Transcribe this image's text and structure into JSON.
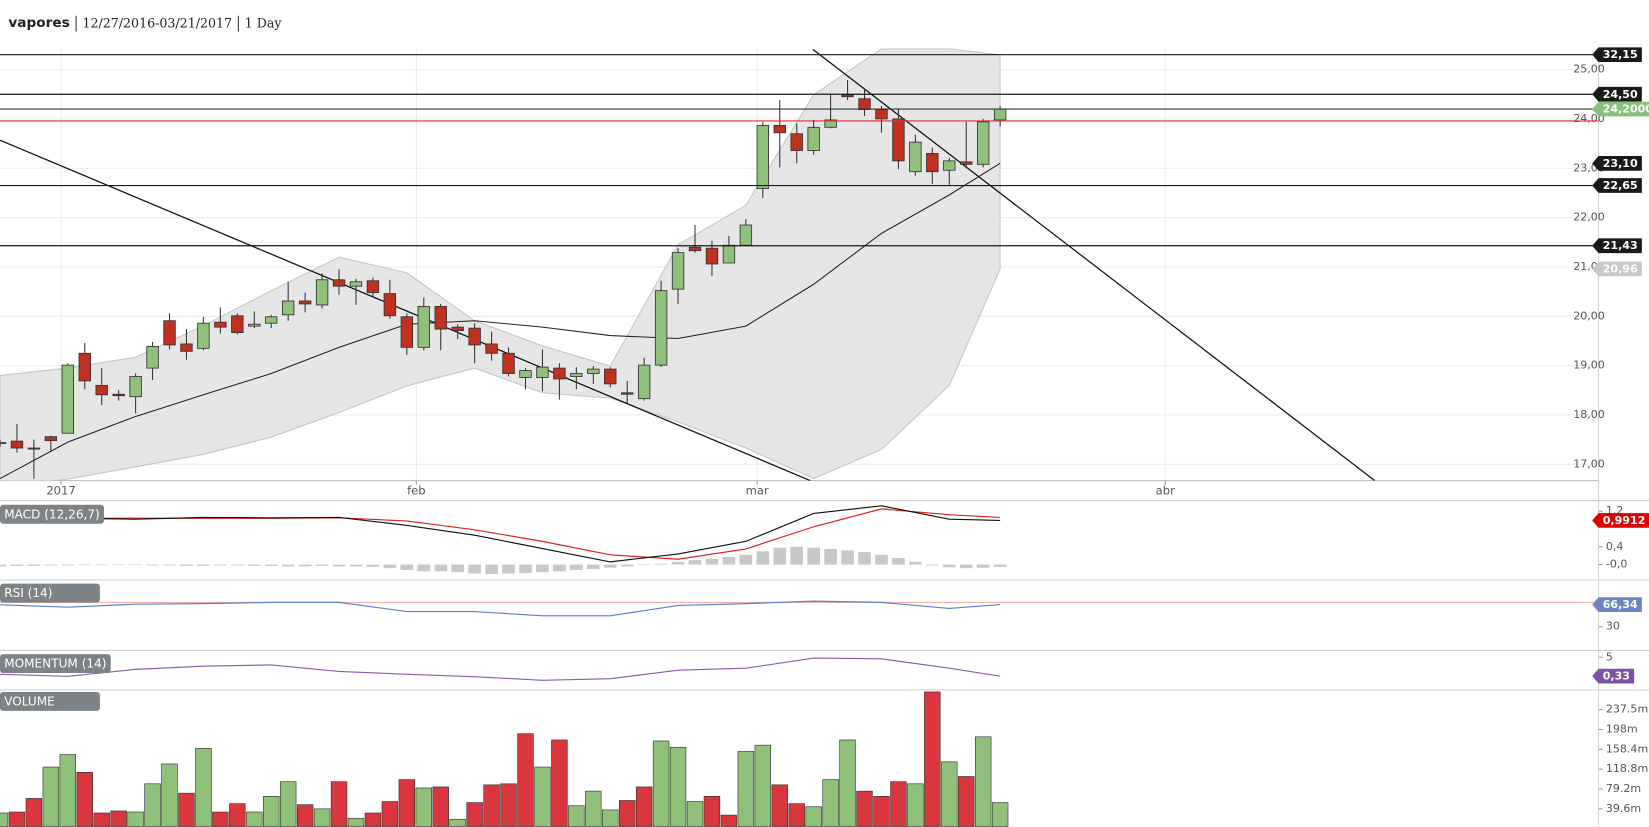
{
  "header": {
    "symbol": "vapores",
    "range": "12/27/2016-03/21/2017",
    "interval": "1 Day"
  },
  "chart_data": [
    {
      "type": "candlestick",
      "open": [
        17.42,
        17.47,
        17.33,
        17.56,
        17.63,
        19.25,
        18.6,
        18.42,
        18.37,
        18.95,
        19.91,
        19.44,
        19.35,
        19.88,
        20.01,
        19.8,
        19.86,
        20.03,
        20.31,
        20.23,
        20.74,
        20.61,
        20.72,
        20.46,
        19.99,
        19.37,
        20.2,
        19.78,
        19.76,
        19.44,
        19.25,
        18.76,
        18.76,
        18.95,
        18.78,
        18.84,
        18.93,
        18.45,
        18.33,
        19.01,
        20.55,
        21.4,
        21.38,
        21.08,
        21.44,
        22.59,
        23.87,
        23.7,
        23.36,
        23.83,
        24.49,
        24.41,
        24.19,
        24.0,
        22.93,
        23.3,
        22.96,
        23.13,
        23.08,
        23.98
      ],
      "high": [
        17.5,
        17.82,
        17.5,
        17.58,
        19.05,
        19.46,
        18.95,
        18.5,
        18.84,
        19.48,
        20.06,
        19.74,
        19.99,
        20.18,
        20.06,
        20.1,
        20.03,
        20.7,
        20.48,
        20.87,
        20.95,
        20.76,
        20.78,
        20.74,
        20.06,
        20.38,
        20.25,
        19.84,
        19.86,
        19.69,
        19.37,
        18.95,
        19.33,
        19.05,
        18.97,
        18.99,
        18.97,
        18.69,
        19.16,
        20.72,
        21.38,
        21.85,
        21.53,
        21.63,
        21.97,
        23.94,
        24.38,
        23.91,
        23.98,
        24.51,
        24.79,
        24.62,
        24.26,
        24.19,
        23.68,
        23.42,
        23.21,
        23.94,
        24.0,
        24.26
      ],
      "low": [
        17.35,
        17.24,
        16.71,
        17.28,
        17.62,
        18.52,
        18.2,
        18.29,
        18.03,
        18.71,
        19.33,
        19.12,
        19.31,
        19.65,
        19.63,
        19.76,
        19.76,
        19.91,
        20.08,
        20.16,
        20.44,
        20.23,
        20.4,
        19.95,
        19.22,
        19.31,
        19.31,
        19.54,
        19.05,
        19.1,
        18.78,
        18.52,
        18.48,
        18.31,
        18.52,
        18.63,
        18.56,
        18.24,
        18.29,
        18.97,
        20.25,
        21.29,
        20.82,
        21.08,
        21.42,
        22.4,
        23.02,
        23.1,
        23.28,
        23.81,
        24.38,
        24.06,
        23.72,
        22.98,
        22.85,
        22.68,
        22.66,
        23.0,
        23.02,
        23.85
      ],
      "close": [
        17.44,
        17.33,
        17.31,
        17.48,
        19.01,
        18.69,
        18.41,
        18.39,
        18.78,
        19.39,
        19.42,
        19.29,
        19.86,
        19.78,
        19.67,
        19.84,
        19.99,
        20.31,
        20.25,
        20.74,
        20.61,
        20.7,
        20.48,
        20.01,
        19.37,
        20.2,
        19.74,
        19.71,
        19.42,
        19.25,
        18.84,
        18.9,
        18.97,
        18.73,
        18.84,
        18.93,
        18.63,
        18.42,
        19.01,
        20.52,
        21.29,
        21.33,
        21.06,
        21.44,
        21.85,
        23.87,
        23.72,
        23.36,
        23.83,
        23.98,
        24.45,
        24.19,
        24.0,
        23.15,
        23.53,
        22.93,
        23.15,
        23.08,
        23.94,
        24.2
      ],
      "up_color": "#8fc17b",
      "down_color": "#c0301e",
      "xlim": [
        0,
        94.3
      ],
      "xticks": [
        {
          "value": 3.6,
          "label": "2017"
        },
        {
          "value": 24.56,
          "label": "feb"
        },
        {
          "value": 44.67,
          "label": "mar"
        },
        {
          "value": 68.74,
          "label": "abr"
        }
      ],
      "ylim": [
        16.67,
        25.43
      ],
      "yticks": [
        {
          "value": 17,
          "label": "17,00"
        },
        {
          "value": 18,
          "label": "18,00"
        },
        {
          "value": 19,
          "label": "19,00"
        },
        {
          "value": 20,
          "label": "20,00"
        },
        {
          "value": 21,
          "label": "21,00"
        },
        {
          "value": 22,
          "label": "22,00"
        },
        {
          "value": 23,
          "label": "23,00"
        },
        {
          "value": 24,
          "label": "24,00"
        },
        {
          "value": 25,
          "label": "25,00"
        }
      ],
      "grid": true,
      "band": {
        "x": [
          0,
          4,
          8,
          12,
          16,
          20,
          24,
          28,
          32,
          36,
          40,
          44,
          48,
          52,
          56,
          59
        ],
        "upper": [
          18.8,
          18.95,
          19.17,
          19.81,
          20.52,
          21.2,
          20.88,
          19.91,
          19.4,
          18.99,
          21.45,
          22.25,
          24.49,
          25.42,
          25.42,
          25.3
        ],
        "lower": [
          16.55,
          16.7,
          16.95,
          17.2,
          17.55,
          18.05,
          18.59,
          18.95,
          18.45,
          18.34,
          17.86,
          17.33,
          16.71,
          17.3,
          18.6,
          20.96
        ],
        "color": "#e2e2e2"
      },
      "lines": [
        {
          "x": [
            0,
            4,
            8,
            12,
            16,
            20,
            24,
            28,
            32,
            36,
            40,
            44,
            48,
            52,
            56,
            59
          ],
          "values": [
            16.71,
            17.45,
            17.97,
            18.41,
            18.84,
            19.37,
            19.84,
            19.91,
            19.78,
            19.61,
            19.55,
            19.8,
            20.65,
            21.68,
            22.46,
            23.1
          ],
          "color": "#222"
        }
      ],
      "trendlines": [
        {
          "x": [
            0,
            47.8
          ],
          "values": [
            23.57,
            16.67
          ],
          "color": "#111"
        },
        {
          "x": [
            47.95,
            81.1
          ],
          "values": [
            25.41,
            16.67
          ],
          "color": "#111"
        }
      ],
      "levels": [
        {
          "value": 32.15,
          "label": "32,15",
          "color": "#1a1a1a",
          "line": true
        },
        {
          "value": 24.5,
          "label": "24,50",
          "color": "#1a1a1a",
          "line": true
        },
        {
          "value": 24.2,
          "label": "24,2000",
          "color": "#86c07a",
          "line": true,
          "line_color": "#333"
        },
        {
          "value": 23.96,
          "color": "#e03030",
          "line": true
        },
        {
          "value": 23.1,
          "label": "23,10",
          "color": "#1a1a1a",
          "line": false
        },
        {
          "value": 22.65,
          "label": "22,65",
          "color": "#1a1a1a",
          "line": true
        },
        {
          "value": 21.43,
          "label": "21,43",
          "color": "#1a1a1a",
          "line": true
        },
        {
          "value": 20.96,
          "label": "20,96",
          "color": "#c8c8c8",
          "line": false
        }
      ]
    },
    {
      "type": "line",
      "title": "MACD (12,26,7)",
      "ylim": [
        -0.31,
        1.39
      ],
      "yticks": [
        {
          "value": 0,
          "label": "-0,0"
        },
        {
          "value": 0.4,
          "label": "0,4"
        },
        {
          "value": 1.2,
          "label": "1,2"
        }
      ],
      "histogram": [
        -0.04,
        -0.03,
        -0.03,
        -0.02,
        -0.02,
        -0.01,
        -0.01,
        0,
        -0.01,
        -0.02,
        -0.02,
        -0.03,
        -0.03,
        -0.02,
        -0.02,
        -0.03,
        -0.03,
        -0.04,
        -0.04,
        -0.03,
        -0.04,
        -0.04,
        -0.05,
        -0.08,
        -0.12,
        -0.15,
        -0.15,
        -0.17,
        -0.2,
        -0.21,
        -0.2,
        -0.19,
        -0.17,
        -0.15,
        -0.12,
        -0.1,
        -0.07,
        -0.04,
        -0.01,
        0.02,
        0.06,
        0.1,
        0.13,
        0.17,
        0.22,
        0.3,
        0.38,
        0.4,
        0.38,
        0.35,
        0.32,
        0.28,
        0.22,
        0.15,
        0.06,
        -0.02,
        -0.06,
        -0.08,
        -0.07,
        -0.05
      ],
      "histogram_color": "#c8c8c8",
      "series": [
        {
          "x": [
            0,
            4,
            8,
            12,
            16,
            20,
            24,
            28,
            32,
            36,
            40,
            44,
            48,
            52,
            56,
            59
          ],
          "values": [
            1.05,
            1.04,
            1.04,
            1.04,
            1.04,
            1.05,
            0.98,
            0.78,
            0.52,
            0.22,
            0.12,
            0.35,
            0.85,
            1.25,
            1.12,
            1.06
          ],
          "color": "#e02020"
        },
        {
          "x": [
            0,
            4,
            8,
            12,
            16,
            20,
            24,
            28,
            32,
            36,
            40,
            44,
            48,
            52,
            56,
            59
          ],
          "values": [
            1.06,
            1.04,
            1.02,
            1.06,
            1.05,
            1.06,
            0.88,
            0.66,
            0.36,
            0.06,
            0.24,
            0.52,
            1.15,
            1.32,
            1.02,
            0.99
          ],
          "color": "#111"
        }
      ],
      "levels": [
        {
          "value": 0.9912,
          "label": "0,9912",
          "color": "#e00000"
        }
      ]
    },
    {
      "type": "line",
      "title": "RSI (14)",
      "ylim": [
        -6.3,
        104.2
      ],
      "yticks": [
        30
      ],
      "reference_lines": [
        {
          "value": 70,
          "color": "#f0a8a8"
        }
      ],
      "series": [
        {
          "x": [
            0,
            4,
            8,
            12,
            16,
            20,
            24,
            28,
            32,
            36,
            40,
            44,
            48,
            52,
            56,
            59
          ],
          "values": [
            66,
            62,
            67,
            68,
            70,
            70,
            55,
            55,
            48,
            48,
            65,
            68,
            72,
            70,
            60,
            66.34
          ],
          "color": "#5b7fc4"
        }
      ],
      "levels": [
        {
          "value": 66.34,
          "label": "66,34",
          "color": "#6a86c4"
        }
      ]
    },
    {
      "type": "line",
      "title": "MOMENTUM (14)",
      "ylim": [
        -2.8,
        6.3
      ],
      "yticks": [
        5
      ],
      "series": [
        {
          "x": [
            0,
            4,
            8,
            12,
            16,
            20,
            24,
            28,
            32,
            36,
            40,
            44,
            48,
            52,
            56,
            59
          ],
          "values": [
            0.8,
            0.3,
            2.0,
            2.8,
            3.1,
            1.5,
            0.8,
            0.2,
            -0.7,
            -0.3,
            1.8,
            2.3,
            4.8,
            4.6,
            2.3,
            0.33
          ],
          "color": "#8a5cb0"
        }
      ],
      "levels": [
        {
          "value": 0.33,
          "label": "0,33",
          "color": "#7b52a8"
        }
      ]
    },
    {
      "type": "bar",
      "title": "VOLUME",
      "ylim": [
        4.2,
        277.1
      ],
      "yticks": [
        {
          "value": 39.6,
          "label": "39.6m"
        },
        {
          "value": 79.2,
          "label": "79.2m"
        },
        {
          "value": 118.8,
          "label": "118.8m"
        },
        {
          "value": 158.4,
          "label": "158.4m"
        },
        {
          "value": 198,
          "label": "198m"
        },
        {
          "value": 237.5,
          "label": "237.5m"
        }
      ],
      "values": [
        31.3,
        33.3,
        60.4,
        123.0,
        148.0,
        112.5,
        31.3,
        35.4,
        33.3,
        89.6,
        129.2,
        70.9,
        160.5,
        33.3,
        50.0,
        33.3,
        64.6,
        93.8,
        47.9,
        39.6,
        93.8,
        20.8,
        31.3,
        54.2,
        98.0,
        81.3,
        83.4,
        18.8,
        52.1,
        87.5,
        89.6,
        189.6,
        123.0,
        177.1,
        45.8,
        75.0,
        37.5,
        56.3,
        83.4,
        175.1,
        162.5,
        54.2,
        64.6,
        27.1,
        154.2,
        166.7,
        87.5,
        50.0,
        43.8,
        98.0,
        177.1,
        75.0,
        64.6,
        93.8,
        89.6,
        273.0,
        133.4,
        104.2,
        183.4,
        52.1
      ],
      "colors": [
        "#8fc17b",
        "#d9363e",
        "#d9363e",
        "#8fc17b",
        "#8fc17b",
        "#d9363e",
        "#d9363e",
        "#d9363e",
        "#8fc17b",
        "#8fc17b",
        "#8fc17b",
        "#d9363e",
        "#8fc17b",
        "#d9363e",
        "#d9363e",
        "#8fc17b",
        "#8fc17b",
        "#8fc17b",
        "#d9363e",
        "#8fc17b",
        "#d9363e",
        "#8fc17b",
        "#d9363e",
        "#d9363e",
        "#d9363e",
        "#8fc17b",
        "#d9363e",
        "#8fc17b",
        "#d9363e",
        "#d9363e",
        "#d9363e",
        "#d9363e",
        "#8fc17b",
        "#d9363e",
        "#8fc17b",
        "#8fc17b",
        "#8fc17b",
        "#d9363e",
        "#d9363e",
        "#8fc17b",
        "#8fc17b",
        "#8fc17b",
        "#d9363e",
        "#d9363e",
        "#8fc17b",
        "#8fc17b",
        "#d9363e",
        "#d9363e",
        "#8fc17b",
        "#8fc17b",
        "#8fc17b",
        "#d9363e",
        "#d9363e",
        "#d9363e",
        "#8fc17b",
        "#d9363e",
        "#8fc17b",
        "#d9363e",
        "#8fc17b",
        "#8fc17b"
      ]
    }
  ]
}
